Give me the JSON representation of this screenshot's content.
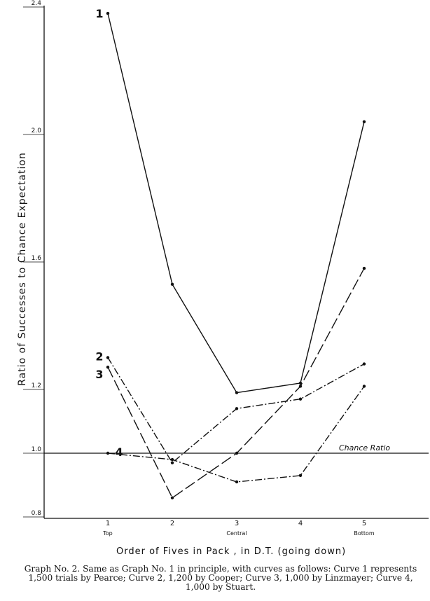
{
  "chart_data": {
    "type": "line",
    "title": "",
    "xlabel": "Order of Fives in Pack , in D.T.   (going down)",
    "ylabel": "Ratio of Successes to Chance Expectation",
    "x": [
      1,
      2,
      3,
      4,
      5
    ],
    "x_tick_labels": [
      "1",
      "2",
      "3",
      "4",
      "5"
    ],
    "x_sub_labels": [
      "Top",
      "",
      "Central",
      "",
      "Bottom"
    ],
    "y_ticks": [
      0.8,
      1.0,
      1.2,
      1.6,
      2.0,
      2.4
    ],
    "y_tick_labels": [
      "0.8",
      "1.0",
      "1.2",
      "1.6",
      "2.0",
      "2.4"
    ],
    "ylim": [
      0.8,
      2.4
    ],
    "reference_line": {
      "y": 1.0,
      "label": "Chance Ratio"
    },
    "series": [
      {
        "name": "1",
        "style": "solid",
        "values": [
          2.38,
          1.53,
          1.19,
          1.22,
          2.04
        ]
      },
      {
        "name": "2",
        "style": "dash-dot",
        "values": [
          1.3,
          0.97,
          1.14,
          1.17,
          1.28
        ]
      },
      {
        "name": "3",
        "style": "long-dash",
        "values": [
          1.27,
          0.86,
          1.0,
          1.21,
          1.58
        ]
      },
      {
        "name": "4",
        "style": "dash-dot",
        "values": [
          1.0,
          0.98,
          0.91,
          0.93,
          1.21
        ]
      }
    ]
  },
  "caption": "Graph No. 2.  Same as Graph No. 1 in principle, with curves as follows: Curve 1 represents 1,500 trials by Pearce; Curve 2, 1,200 by Cooper; Curve 3, 1,000 by Linzmayer; Curve 4, 1,000 by Stuart."
}
